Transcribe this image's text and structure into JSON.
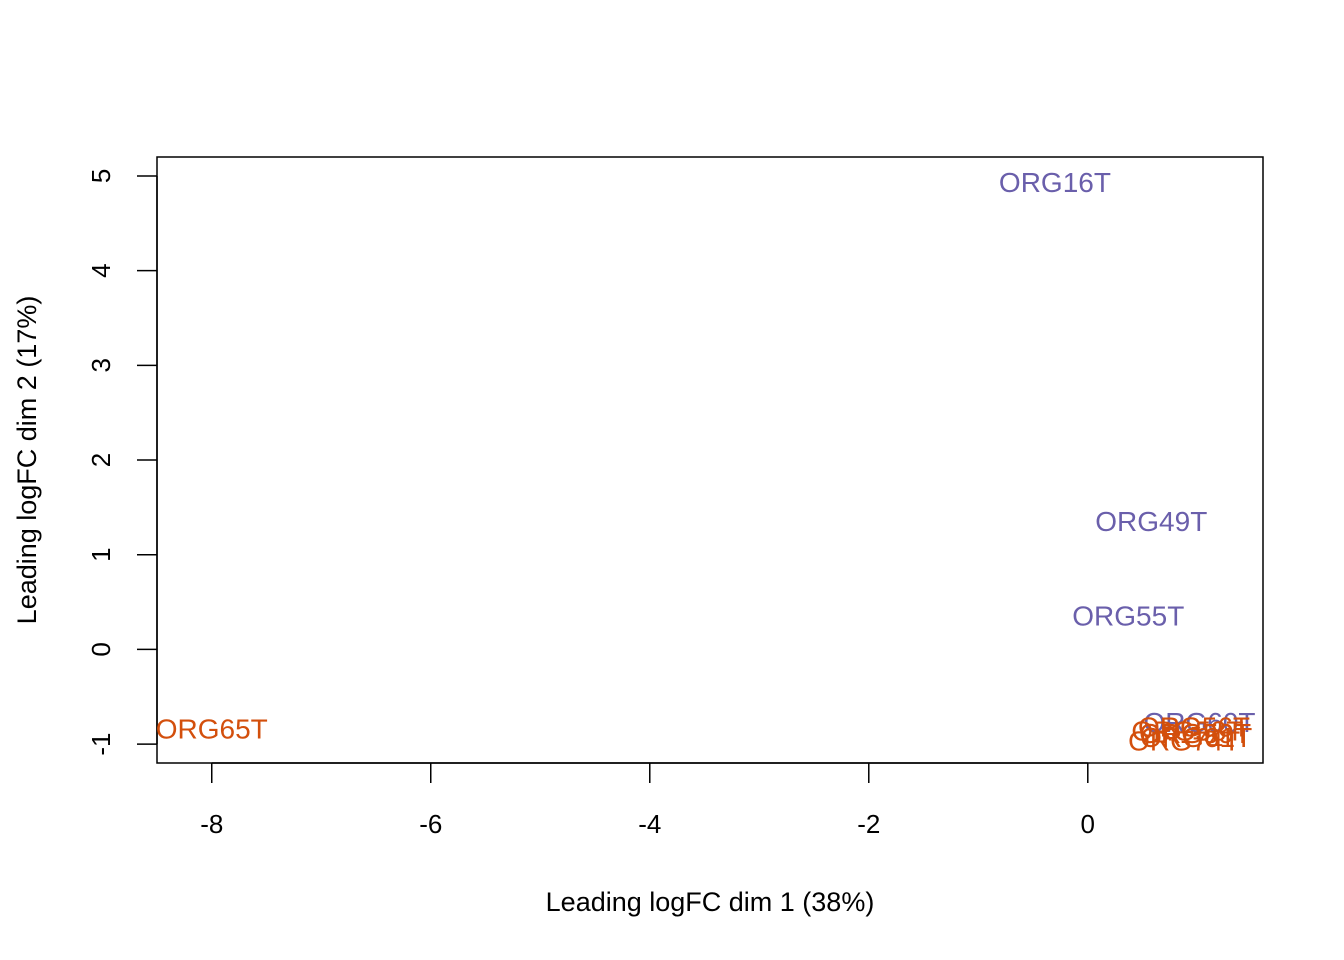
{
  "chart_data": {
    "type": "scatter",
    "title": "",
    "xlabel": "Leading logFC dim 1 (38%)",
    "ylabel": "Leading logFC dim 2 (17%)",
    "xlim": [
      -8.5,
      1.6
    ],
    "ylim": [
      -1.2,
      5.2
    ],
    "xticks": [
      -8,
      -6,
      -4,
      -2,
      0
    ],
    "yticks": [
      -1,
      0,
      1,
      2,
      3,
      4,
      5
    ],
    "xtick_labels": [
      "-8",
      "-6",
      "-4",
      "-2",
      "0"
    ],
    "ytick_labels": [
      "-1",
      "0",
      "1",
      "2",
      "3",
      "4",
      "5"
    ],
    "grid": false,
    "legend": "none",
    "colors": {
      "group_a": "#6a5fab",
      "group_b": "#d34f0c"
    },
    "points": [
      {
        "label": "ORG16T",
        "x": -0.3,
        "y": 4.93,
        "group": "group_a"
      },
      {
        "label": "ORG49T",
        "x": 0.58,
        "y": 1.35,
        "group": "group_a"
      },
      {
        "label": "ORG55T",
        "x": 0.37,
        "y": 0.35,
        "group": "group_a"
      },
      {
        "label": "ORG65T",
        "x": -8.0,
        "y": -0.84,
        "group": "group_b"
      },
      {
        "label": "ORG60T",
        "x": 1.02,
        "y": -0.77,
        "group": "group_a"
      },
      {
        "label": "ORG56T",
        "x": 0.97,
        "y": -0.82,
        "group": "group_b"
      },
      {
        "label": "ORG58T",
        "x": 0.91,
        "y": -0.86,
        "group": "group_b"
      },
      {
        "label": "ORG59T",
        "x": 0.98,
        "y": -0.89,
        "group": "group_b"
      },
      {
        "label": "ORG61T",
        "x": 0.99,
        "y": -0.93,
        "group": "group_b"
      },
      {
        "label": "ORG74T",
        "x": 0.88,
        "y": -0.97,
        "group": "group_b"
      }
    ]
  }
}
